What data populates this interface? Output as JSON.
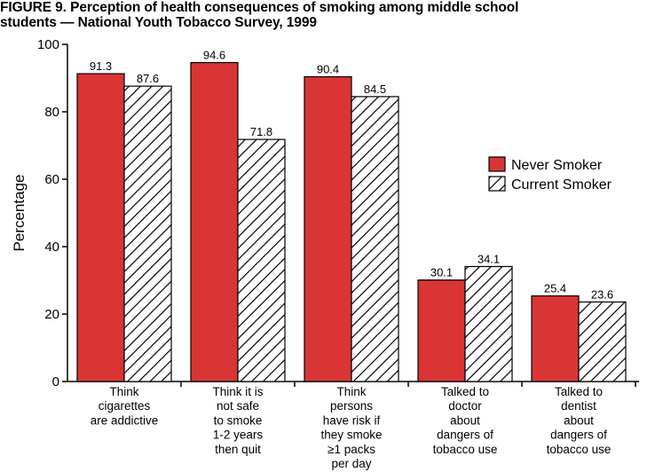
{
  "title": {
    "line1": "FIGURE 9. Perception of health consequences of smoking among middle school",
    "line2": "students — National Youth Tobacco Survey, 1999"
  },
  "colors": {
    "never_smoker": "#d93535",
    "current_smoker_hatch": "#000000",
    "background": "#ffffff"
  },
  "chart_data": {
    "type": "bar",
    "title": "FIGURE 9. Perception of health consequences of smoking among middle school students — National Youth Tobacco Survey, 1999",
    "xlabel": "",
    "ylabel": "Percentage",
    "ylim": [
      0,
      100
    ],
    "yticks": [
      0,
      20,
      40,
      60,
      80,
      100
    ],
    "grid": false,
    "legend_position": "right",
    "categories": [
      [
        "Think",
        "cigarettes",
        "are addictive"
      ],
      [
        "Think it is",
        "not safe",
        "to smoke",
        "1-2 years",
        "then quit"
      ],
      [
        "Think",
        "persons",
        "have risk if",
        "they smoke",
        "≥1 packs",
        "per day"
      ],
      [
        "Talked to",
        "doctor",
        "about",
        "dangers of",
        "tobacco use"
      ],
      [
        "Talked to",
        "dentist",
        "about",
        "dangers of",
        "tobacco use"
      ]
    ],
    "series": [
      {
        "name": "Never Smoker",
        "style": "solid-red",
        "values": [
          91.3,
          94.6,
          90.4,
          30.1,
          25.4
        ],
        "labels": [
          "91.3",
          "94.6",
          "90.4",
          "30.1",
          "25.4"
        ]
      },
      {
        "name": "Current Smoker",
        "style": "diagonal-hatch",
        "values": [
          87.6,
          71.8,
          84.5,
          34.1,
          23.6
        ],
        "labels": [
          "87.6",
          "71.8",
          "84.5",
          "34.1",
          "23.6"
        ]
      }
    ]
  }
}
